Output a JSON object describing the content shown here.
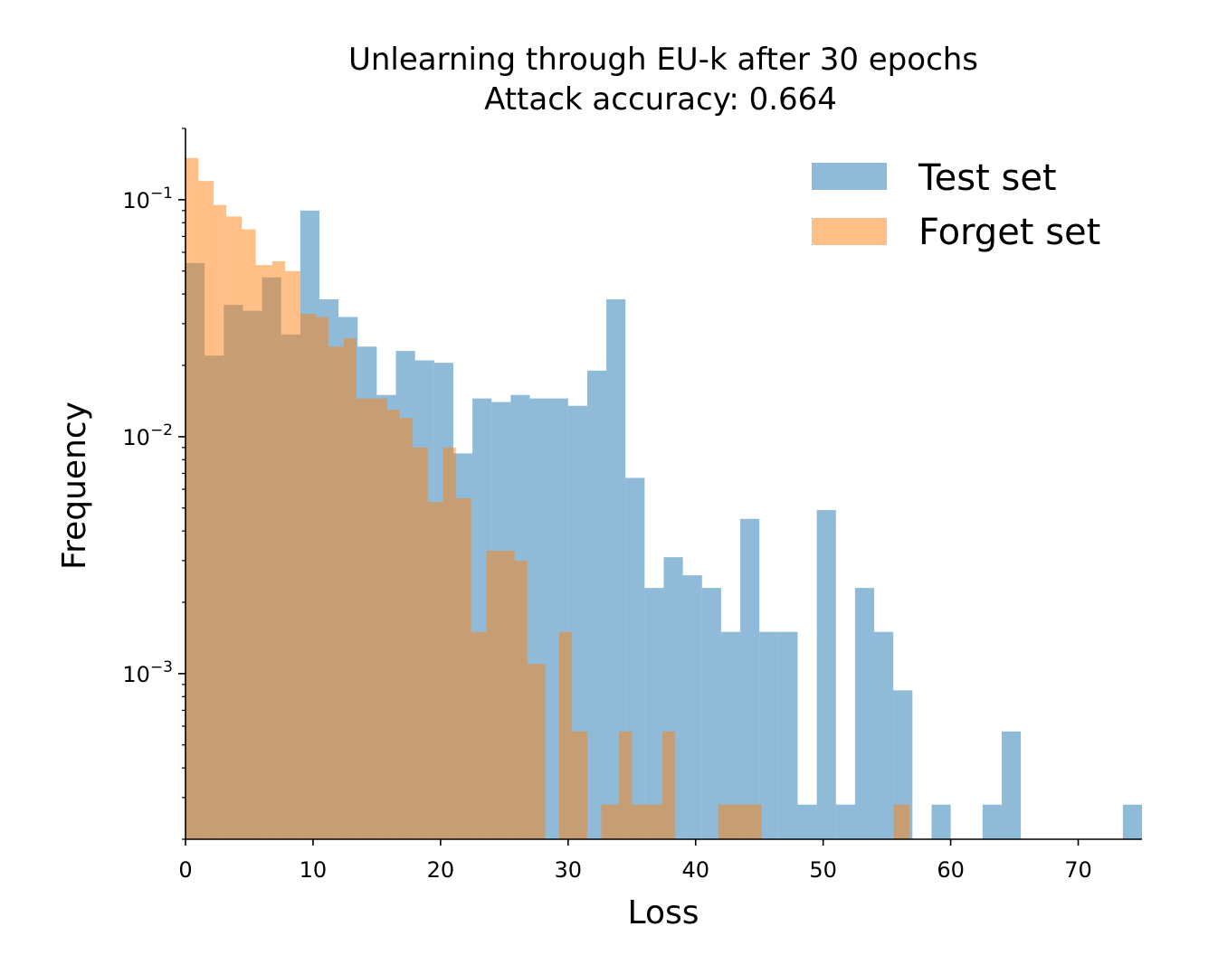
{
  "chart_data": {
    "type": "bar",
    "title": "Unlearning through EU-k after 30 epochs",
    "subtitle": "Attack accuracy: 0.664",
    "xlabel": "Loss",
    "ylabel": "Frequency",
    "xlim": [
      0,
      75
    ],
    "ylim": [
      0.0002,
      0.2
    ],
    "yscale": "log",
    "x_ticks": [
      0,
      10,
      20,
      30,
      40,
      50,
      60,
      70
    ],
    "x_tick_labels": [
      "0",
      "10",
      "20",
      "30",
      "40",
      "50",
      "60",
      "70"
    ],
    "y_ticks": [
      0.001,
      0.01,
      0.1
    ],
    "y_tick_labels": [
      {
        "base": "10",
        "exp": "−3"
      },
      {
        "base": "10",
        "exp": "−2"
      },
      {
        "base": "10",
        "exp": "−1"
      }
    ],
    "legend_position": "top-right",
    "series": [
      {
        "name": "Test set",
        "color": "#1f77b4",
        "opacity": 0.5,
        "bins": [
          [
            0.0,
            1.5,
            0.054
          ],
          [
            1.5,
            3.0,
            0.022
          ],
          [
            3.0,
            4.5,
            0.036
          ],
          [
            4.5,
            6.0,
            0.034
          ],
          [
            6.0,
            7.5,
            0.047
          ],
          [
            7.5,
            9.0,
            0.027
          ],
          [
            9.0,
            10.5,
            0.09
          ],
          [
            10.5,
            12.0,
            0.038
          ],
          [
            12.0,
            13.5,
            0.032
          ],
          [
            13.5,
            15.0,
            0.024
          ],
          [
            15.0,
            16.5,
            0.015
          ],
          [
            16.5,
            18.0,
            0.023
          ],
          [
            18.0,
            19.5,
            0.021
          ],
          [
            19.5,
            21.0,
            0.0205
          ],
          [
            21.0,
            22.5,
            0.0085
          ],
          [
            22.5,
            24.0,
            0.0145
          ],
          [
            24.0,
            25.5,
            0.014
          ],
          [
            25.5,
            27.0,
            0.015
          ],
          [
            27.0,
            28.5,
            0.0145
          ],
          [
            28.5,
            30.0,
            0.0145
          ],
          [
            30.0,
            31.5,
            0.0135
          ],
          [
            31.5,
            33.0,
            0.019
          ],
          [
            33.0,
            34.5,
            0.038
          ],
          [
            34.5,
            36.0,
            0.0067
          ],
          [
            36.0,
            37.5,
            0.0023
          ],
          [
            37.5,
            39.0,
            0.0031
          ],
          [
            39.0,
            40.5,
            0.0026
          ],
          [
            40.5,
            42.0,
            0.0023
          ],
          [
            42.0,
            43.5,
            0.0015
          ],
          [
            43.5,
            45.0,
            0.0045
          ],
          [
            45.0,
            46.5,
            0.0015
          ],
          [
            46.5,
            48.0,
            0.0015
          ],
          [
            48.0,
            49.5,
            0.00028
          ],
          [
            49.5,
            51.0,
            0.0049
          ],
          [
            51.0,
            52.5,
            0.00028
          ],
          [
            52.5,
            54.0,
            0.0023
          ],
          [
            54.0,
            55.5,
            0.0015
          ],
          [
            55.5,
            57.0,
            0.00085
          ],
          [
            58.5,
            60.0,
            0.00028
          ],
          [
            62.5,
            64.0,
            0.00028
          ],
          [
            64.0,
            65.5,
            0.00057
          ],
          [
            73.5,
            75.0,
            0.00028
          ]
        ]
      },
      {
        "name": "Forget set",
        "color": "#ff7f0e",
        "opacity": 0.5,
        "bins": [
          [
            0.0,
            1.0,
            0.15
          ],
          [
            1.0,
            2.2,
            0.12
          ],
          [
            2.2,
            3.2,
            0.095
          ],
          [
            3.2,
            4.4,
            0.085
          ],
          [
            4.4,
            5.5,
            0.075
          ],
          [
            5.5,
            6.8,
            0.053
          ],
          [
            6.8,
            7.8,
            0.055
          ],
          [
            7.8,
            9.0,
            0.05
          ],
          [
            9.0,
            10.2,
            0.033
          ],
          [
            10.2,
            11.2,
            0.032
          ],
          [
            11.2,
            12.4,
            0.024
          ],
          [
            12.4,
            13.4,
            0.026
          ],
          [
            13.4,
            14.5,
            0.0145
          ],
          [
            14.5,
            15.8,
            0.0145
          ],
          [
            15.8,
            16.8,
            0.013
          ],
          [
            16.8,
            17.8,
            0.012
          ],
          [
            17.8,
            19.0,
            0.009
          ],
          [
            19.0,
            20.2,
            0.0053
          ],
          [
            20.2,
            21.2,
            0.009
          ],
          [
            21.2,
            22.4,
            0.0055
          ],
          [
            22.4,
            23.6,
            0.0015
          ],
          [
            23.6,
            25.8,
            0.0033
          ],
          [
            25.8,
            26.8,
            0.003
          ],
          [
            26.8,
            28.2,
            0.0011
          ],
          [
            29.3,
            30.3,
            0.0015
          ],
          [
            30.3,
            31.5,
            0.00057
          ],
          [
            32.6,
            34.0,
            0.00028
          ],
          [
            34.0,
            35.0,
            0.00057
          ],
          [
            35.0,
            37.4,
            0.00028
          ],
          [
            37.4,
            38.4,
            0.00057
          ],
          [
            41.8,
            45.2,
            0.00028
          ],
          [
            55.5,
            56.8,
            0.00028
          ]
        ]
      }
    ]
  }
}
